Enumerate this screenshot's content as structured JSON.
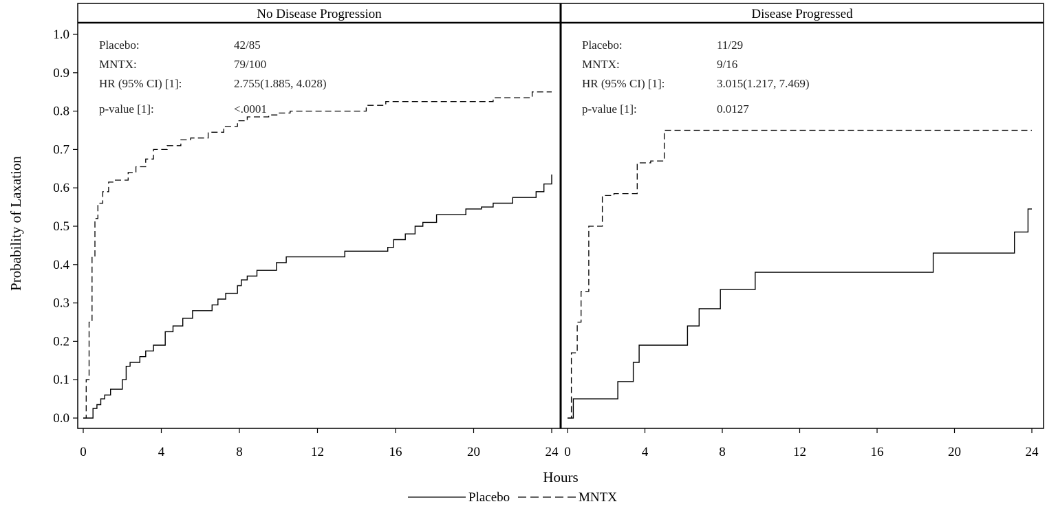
{
  "chart_data": {
    "type": "line",
    "ylabel": "Probability of Laxation",
    "xlabel": "Hours",
    "ylim": [
      0.0,
      1.0
    ],
    "xlim": [
      0,
      24
    ],
    "y_ticks": [
      "0.0",
      "0.1",
      "0.2",
      "0.3",
      "0.4",
      "0.5",
      "0.6",
      "0.7",
      "0.8",
      "0.9",
      "1.0"
    ],
    "x_ticks": [
      "0",
      "4",
      "8",
      "12",
      "16",
      "20",
      "24"
    ],
    "legend": {
      "position": "bottom",
      "entries": [
        {
          "label": "Placebo",
          "style": "solid"
        },
        {
          "label": "MNTX",
          "style": "dashed"
        }
      ]
    },
    "panels": [
      {
        "title": "No Disease Progression",
        "stats": [
          {
            "label": "Placebo:",
            "value": "42/85"
          },
          {
            "label": "MNTX:",
            "value": "79/100"
          },
          {
            "label": "HR (95% CI) [1]:",
            "value": "2.755(1.885, 4.028)"
          },
          {
            "label": "p-value [1]:",
            "value": "<.0001"
          }
        ],
        "series": [
          {
            "name": "Placebo",
            "style": "solid",
            "x": [
              0,
              0.5,
              0.7,
              0.9,
              1.1,
              1.4,
              2.0,
              2.2,
              2.4,
              2.9,
              3.2,
              3.6,
              4.2,
              4.6,
              5.1,
              5.6,
              6.6,
              6.9,
              7.3,
              7.9,
              8.1,
              8.4,
              8.9,
              9.9,
              10.4,
              13.4,
              15.6,
              15.9,
              16.5,
              17.0,
              17.4,
              18.1,
              19.6,
              20.4,
              21.0,
              22.0,
              23.2,
              23.6,
              24
            ],
            "y": [
              0.0,
              0.025,
              0.035,
              0.05,
              0.06,
              0.075,
              0.1,
              0.135,
              0.145,
              0.16,
              0.175,
              0.19,
              0.225,
              0.24,
              0.26,
              0.28,
              0.295,
              0.31,
              0.325,
              0.345,
              0.36,
              0.37,
              0.385,
              0.405,
              0.42,
              0.435,
              0.445,
              0.465,
              0.48,
              0.5,
              0.51,
              0.53,
              0.545,
              0.55,
              0.56,
              0.575,
              0.59,
              0.61,
              0.635
            ]
          },
          {
            "name": "MNTX",
            "style": "dashed",
            "x": [
              0,
              0.15,
              0.3,
              0.45,
              0.6,
              0.75,
              1.0,
              1.3,
              1.6,
              2.3,
              2.7,
              3.2,
              3.6,
              4.3,
              5.0,
              5.5,
              6.4,
              7.2,
              7.9,
              8.4,
              9.5,
              10.0,
              10.6,
              14.5,
              15.5,
              21.0,
              23.0,
              24
            ],
            "y": [
              0.0,
              0.1,
              0.25,
              0.42,
              0.52,
              0.56,
              0.59,
              0.615,
              0.62,
              0.64,
              0.655,
              0.675,
              0.7,
              0.71,
              0.725,
              0.73,
              0.745,
              0.76,
              0.775,
              0.785,
              0.79,
              0.795,
              0.8,
              0.815,
              0.825,
              0.835,
              0.85,
              0.85
            ]
          }
        ]
      },
      {
        "title": "Disease Progressed",
        "stats": [
          {
            "label": "Placebo:",
            "value": "11/29"
          },
          {
            "label": "MNTX:",
            "value": "9/16"
          },
          {
            "label": "HR (95% CI) [1]:",
            "value": "3.015(1.217, 7.469)"
          },
          {
            "label": "p-value [1]:",
            "value": "0.0127"
          }
        ],
        "series": [
          {
            "name": "Placebo",
            "style": "solid",
            "x": [
              0,
              0.3,
              2.6,
              3.4,
              3.7,
              5.2,
              6.2,
              6.8,
              7.9,
              9.7,
              18.9,
              23.1,
              23.8,
              24
            ],
            "y": [
              0.0,
              0.05,
              0.095,
              0.145,
              0.19,
              0.19,
              0.24,
              0.285,
              0.335,
              0.38,
              0.43,
              0.485,
              0.545,
              0.545
            ]
          },
          {
            "name": "MNTX",
            "style": "dashed",
            "x": [
              0,
              0.2,
              0.5,
              0.7,
              1.1,
              1.8,
              2.4,
              3.6,
              4.3,
              5.0,
              24
            ],
            "y": [
              0.0,
              0.17,
              0.25,
              0.33,
              0.5,
              0.58,
              0.585,
              0.665,
              0.67,
              0.75,
              0.75
            ]
          }
        ]
      }
    ]
  }
}
